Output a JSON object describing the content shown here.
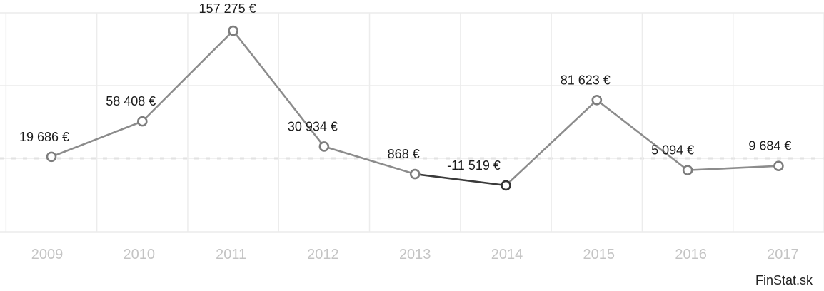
{
  "chart_data": {
    "type": "line",
    "categories": [
      "2009",
      "2010",
      "2011",
      "2012",
      "2013",
      "2014",
      "2015",
      "2016",
      "2017"
    ],
    "series": [
      {
        "values": [
          19686,
          58408,
          157275,
          30934,
          868,
          -11519,
          81623,
          5094,
          9684
        ],
        "labels": [
          "19 686 €",
          "58 408 €",
          "157 275 €",
          "30 934 €",
          "868 €",
          "-11 519 €",
          "81 623 €",
          "5 094 €",
          "9 684 €"
        ],
        "color": "#8c8c8c",
        "highlight_color": "#333333",
        "highlight_categories": [
          "2013",
          "2014"
        ]
      }
    ],
    "ylim": [
      -66000,
      183000
    ],
    "grid": true,
    "legend": "none"
  },
  "source": "FinStat.sk"
}
